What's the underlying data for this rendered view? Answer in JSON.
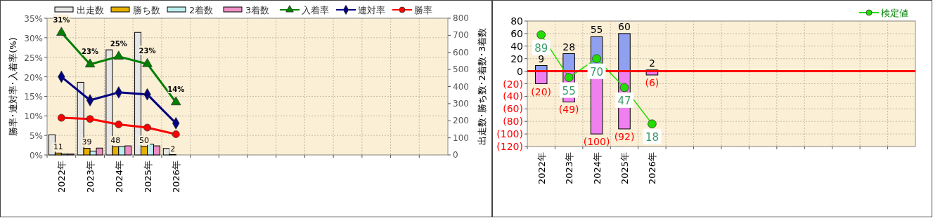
{
  "chart_data": [
    {
      "type": "bar",
      "ylabel": "勝率･連対率･入着率(%)",
      "y2label": "出走数･勝ち数･2着数･3着数",
      "categories": [
        "2022年",
        "2023年",
        "2024年",
        "2025年",
        "2026年",
        null,
        null,
        null,
        null,
        null,
        null,
        null,
        null,
        null
      ],
      "series": [
        {
          "name": "出走数",
          "axis": "y2",
          "color": "#e6e6e6",
          "values": [
            118,
            425,
            615,
            717,
            38,
            null,
            null,
            null,
            null,
            null,
            null,
            null,
            null,
            null
          ]
        },
        {
          "name": "勝ち数",
          "axis": "y2",
          "color": "#e6b000",
          "values": [
            11,
            39,
            48,
            50,
            2,
            null,
            null,
            null,
            null,
            null,
            null,
            null,
            null,
            null
          ],
          "value_labels": [
            "11",
            "39",
            "48",
            "50",
            "2",
            null,
            null,
            null,
            null,
            null,
            null,
            null,
            null,
            null
          ]
        },
        {
          "name": "2着数",
          "axis": "y2",
          "color": "#bdeeee",
          "values": [
            5,
            22,
            49,
            63,
            0,
            null,
            null,
            null,
            null,
            null,
            null,
            null,
            null,
            null
          ]
        },
        {
          "name": "3着数",
          "axis": "y2",
          "color": "#ee8fc4",
          "values": [
            5,
            40,
            53,
            53,
            0,
            null,
            null,
            null,
            null,
            null,
            null,
            null,
            null,
            null
          ]
        },
        {
          "name": "入着率",
          "type": "line",
          "marker": "triangle",
          "color": "#008000",
          "values": [
            31.3,
            23.2,
            25.2,
            23.3,
            13.5,
            null,
            null,
            null,
            null,
            null,
            null,
            null,
            null,
            null
          ],
          "value_labels": [
            "31%",
            "23%",
            "25%",
            "23%",
            "14%",
            null,
            null,
            null,
            null,
            null,
            null,
            null,
            null,
            null
          ]
        },
        {
          "name": "連対率",
          "type": "line",
          "marker": "diamond",
          "color": "#000080",
          "values": [
            20,
            14,
            16,
            15.5,
            8.1,
            null,
            null,
            null,
            null,
            null,
            null,
            null,
            null,
            null
          ]
        },
        {
          "name": "勝率",
          "type": "line",
          "marker": "circle",
          "color": "#ff0000",
          "values": [
            9.5,
            9.2,
            7.8,
            7,
            5.3,
            null,
            null,
            null,
            null,
            null,
            null,
            null,
            null,
            null
          ]
        }
      ],
      "ylim": [
        0,
        35
      ],
      "yticks": [
        {
          "value": 0,
          "label": "0%"
        },
        {
          "value": 5,
          "label": "5%"
        },
        {
          "value": 10,
          "label": "10%"
        },
        {
          "value": 15,
          "label": "15%"
        },
        {
          "value": 20,
          "label": "20%"
        },
        {
          "value": 25,
          "label": "25%"
        },
        {
          "value": 30,
          "label": "30%"
        },
        {
          "value": 35,
          "label": "35%"
        }
      ],
      "y2lim": [
        0,
        800
      ],
      "y2ticks": [
        0,
        100,
        200,
        300,
        400,
        500,
        600,
        700,
        800
      ],
      "grid": true,
      "legend": "top"
    },
    {
      "type": "bar",
      "stacked": true,
      "categories": [
        "2022年",
        "2023年",
        "2024年",
        "2025年",
        "2026年",
        null,
        null,
        null,
        null,
        null,
        null,
        null,
        null,
        null
      ],
      "series": [
        {
          "color": "#8fa0f0",
          "values": [
            9,
            28,
            55,
            60,
            2,
            null,
            null,
            null,
            null,
            null,
            null,
            null,
            null,
            null
          ],
          "value_labels": [
            "9",
            "28",
            "55",
            "60",
            "2",
            null,
            null,
            null,
            null,
            null,
            null,
            null,
            null,
            null
          ]
        },
        {
          "color": "#f080f0",
          "values": [
            -20,
            -49,
            -100,
            -92,
            -6,
            null,
            null,
            null,
            null,
            null,
            null,
            null,
            null,
            null
          ],
          "value_labels": [
            "(20)",
            "(49)",
            "(100)",
            "(92)",
            "(6)",
            null,
            null,
            null,
            null,
            null,
            null,
            null,
            null,
            null
          ]
        },
        {
          "name": "検定値",
          "type": "line",
          "axis": "y2",
          "marker": "circle",
          "color": "#22dd00",
          "values": [
            89,
            55,
            70,
            47,
            18,
            null,
            null,
            null,
            null,
            null,
            null,
            null,
            null,
            null
          ],
          "value_labels": [
            "89",
            "55",
            "70",
            "47",
            "18",
            null,
            null,
            null,
            null,
            null,
            null,
            null,
            null,
            null
          ]
        }
      ],
      "ylim": [
        -120,
        80
      ],
      "yticks": [
        {
          "value": -120,
          "label": "(120)"
        },
        {
          "value": -100,
          "label": "(100)"
        },
        {
          "value": -80,
          "label": "(80)"
        },
        {
          "value": -60,
          "label": "(60)"
        },
        {
          "value": -40,
          "label": "(40)"
        },
        {
          "value": -20,
          "label": "(20)"
        },
        0,
        20,
        40,
        60,
        80
      ],
      "y2lim": [
        0,
        100
      ],
      "ref_lines": [
        {
          "axis": "y",
          "value": 0,
          "color": "#ff0000"
        }
      ],
      "grid": true,
      "legend": "top right"
    }
  ]
}
